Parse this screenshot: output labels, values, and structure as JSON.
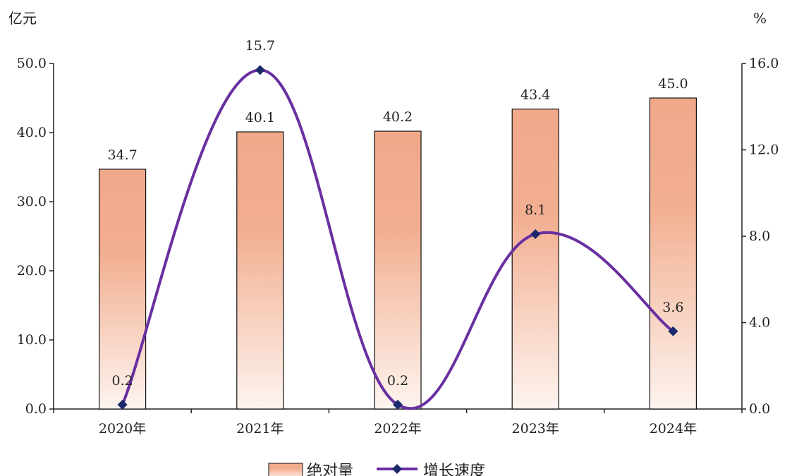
{
  "chart_data": {
    "type": "bar",
    "categories": [
      "2020年",
      "2021年",
      "2022年",
      "2023年",
      "2024年"
    ],
    "series": [
      {
        "name": "绝对量",
        "type": "bar",
        "axis": "left",
        "values": [
          34.7,
          40.1,
          40.2,
          43.4,
          45.0
        ],
        "labels": [
          "34.7",
          "40.1",
          "40.2",
          "43.4",
          "45.0"
        ]
      },
      {
        "name": "增长速度",
        "type": "line",
        "axis": "right",
        "values": [
          0.2,
          15.7,
          0.2,
          8.1,
          3.6
        ],
        "labels": [
          "0.2",
          "15.7",
          "0.2",
          "8.1",
          "3.6"
        ]
      }
    ],
    "y_left": {
      "unit": "亿元",
      "ylim": [
        0,
        50
      ],
      "ticks": [
        "0.0",
        "10.0",
        "20.0",
        "30.0",
        "40.0",
        "50.0"
      ]
    },
    "y_right": {
      "unit": "%",
      "ylim": [
        0,
        16
      ],
      "ticks": [
        "0.0",
        "4.0",
        "8.0",
        "12.0",
        "16.0"
      ]
    },
    "grid": false,
    "legend": "bottom-center",
    "colors": {
      "bar_top": "#f0a98a",
      "bar_bottom": "#fdf4ef",
      "bar_stroke": "#111111",
      "line": "#6a2fa0",
      "marker": "#1a2a6c",
      "axis": "#222222"
    }
  }
}
